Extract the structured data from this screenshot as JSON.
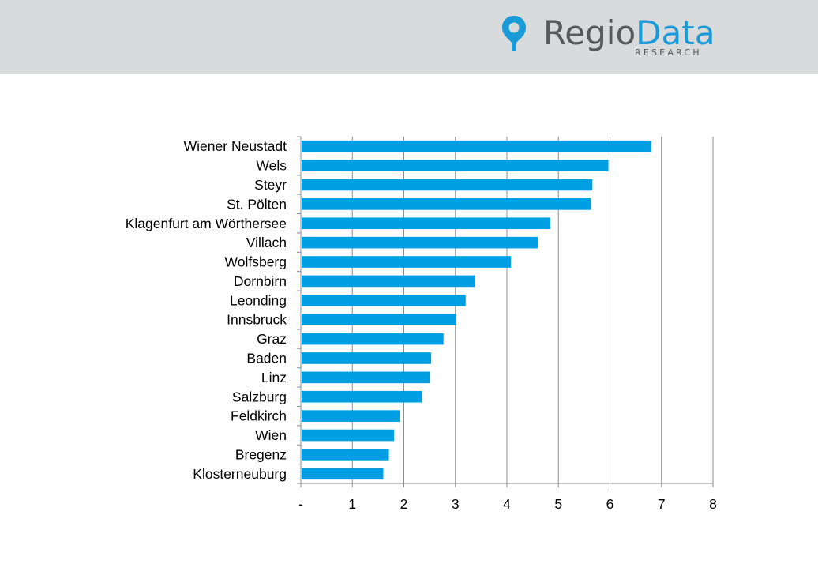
{
  "header": {
    "logo_part1": "Regio",
    "logo_part2": "Data",
    "logo_sub": "RESEARCH",
    "logo_pin_color": "#1a9ad6",
    "logo_text_color": "#58595b",
    "background": "#d9dadb"
  },
  "chart_data": {
    "type": "bar",
    "orientation": "horizontal",
    "categories": [
      "Wiener Neustadt",
      "Wels",
      "Steyr",
      "St. Pölten",
      "Klagenfurt am Wörthersee",
      "Villach",
      "Wolfsberg",
      "Dornbirn",
      "Leonding",
      "Innsbruck",
      "Graz",
      "Baden",
      "Linz",
      "Salzburg",
      "Feldkirch",
      "Wien",
      "Bregenz",
      "Klosterneuburg"
    ],
    "values": [
      6.8,
      5.97,
      5.66,
      5.63,
      4.84,
      4.6,
      4.08,
      3.38,
      3.2,
      3.02,
      2.77,
      2.53,
      2.5,
      2.35,
      1.92,
      1.81,
      1.71,
      1.6
    ],
    "xlim": [
      0,
      8
    ],
    "xticks": [
      "-",
      "1",
      "2",
      "3",
      "4",
      "5",
      "6",
      "7",
      "8"
    ],
    "title": "",
    "xlabel": "",
    "ylabel": "",
    "grid": "vertical",
    "bar_color": "#009fe3"
  }
}
